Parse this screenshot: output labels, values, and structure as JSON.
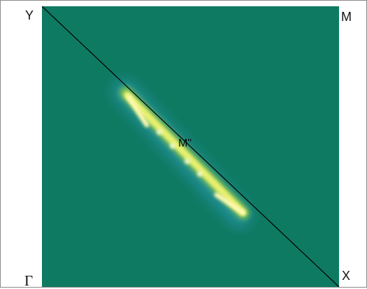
{
  "labels": {
    "top_left": "Y",
    "top_right": "M",
    "bottom_left": "Γ",
    "bottom_right": "X",
    "center": "M\""
  },
  "colors": {
    "background": "#0f7a62",
    "line": "#000000",
    "feature_core": "#fff9a8",
    "feature_edge": "#c8d84a"
  }
}
